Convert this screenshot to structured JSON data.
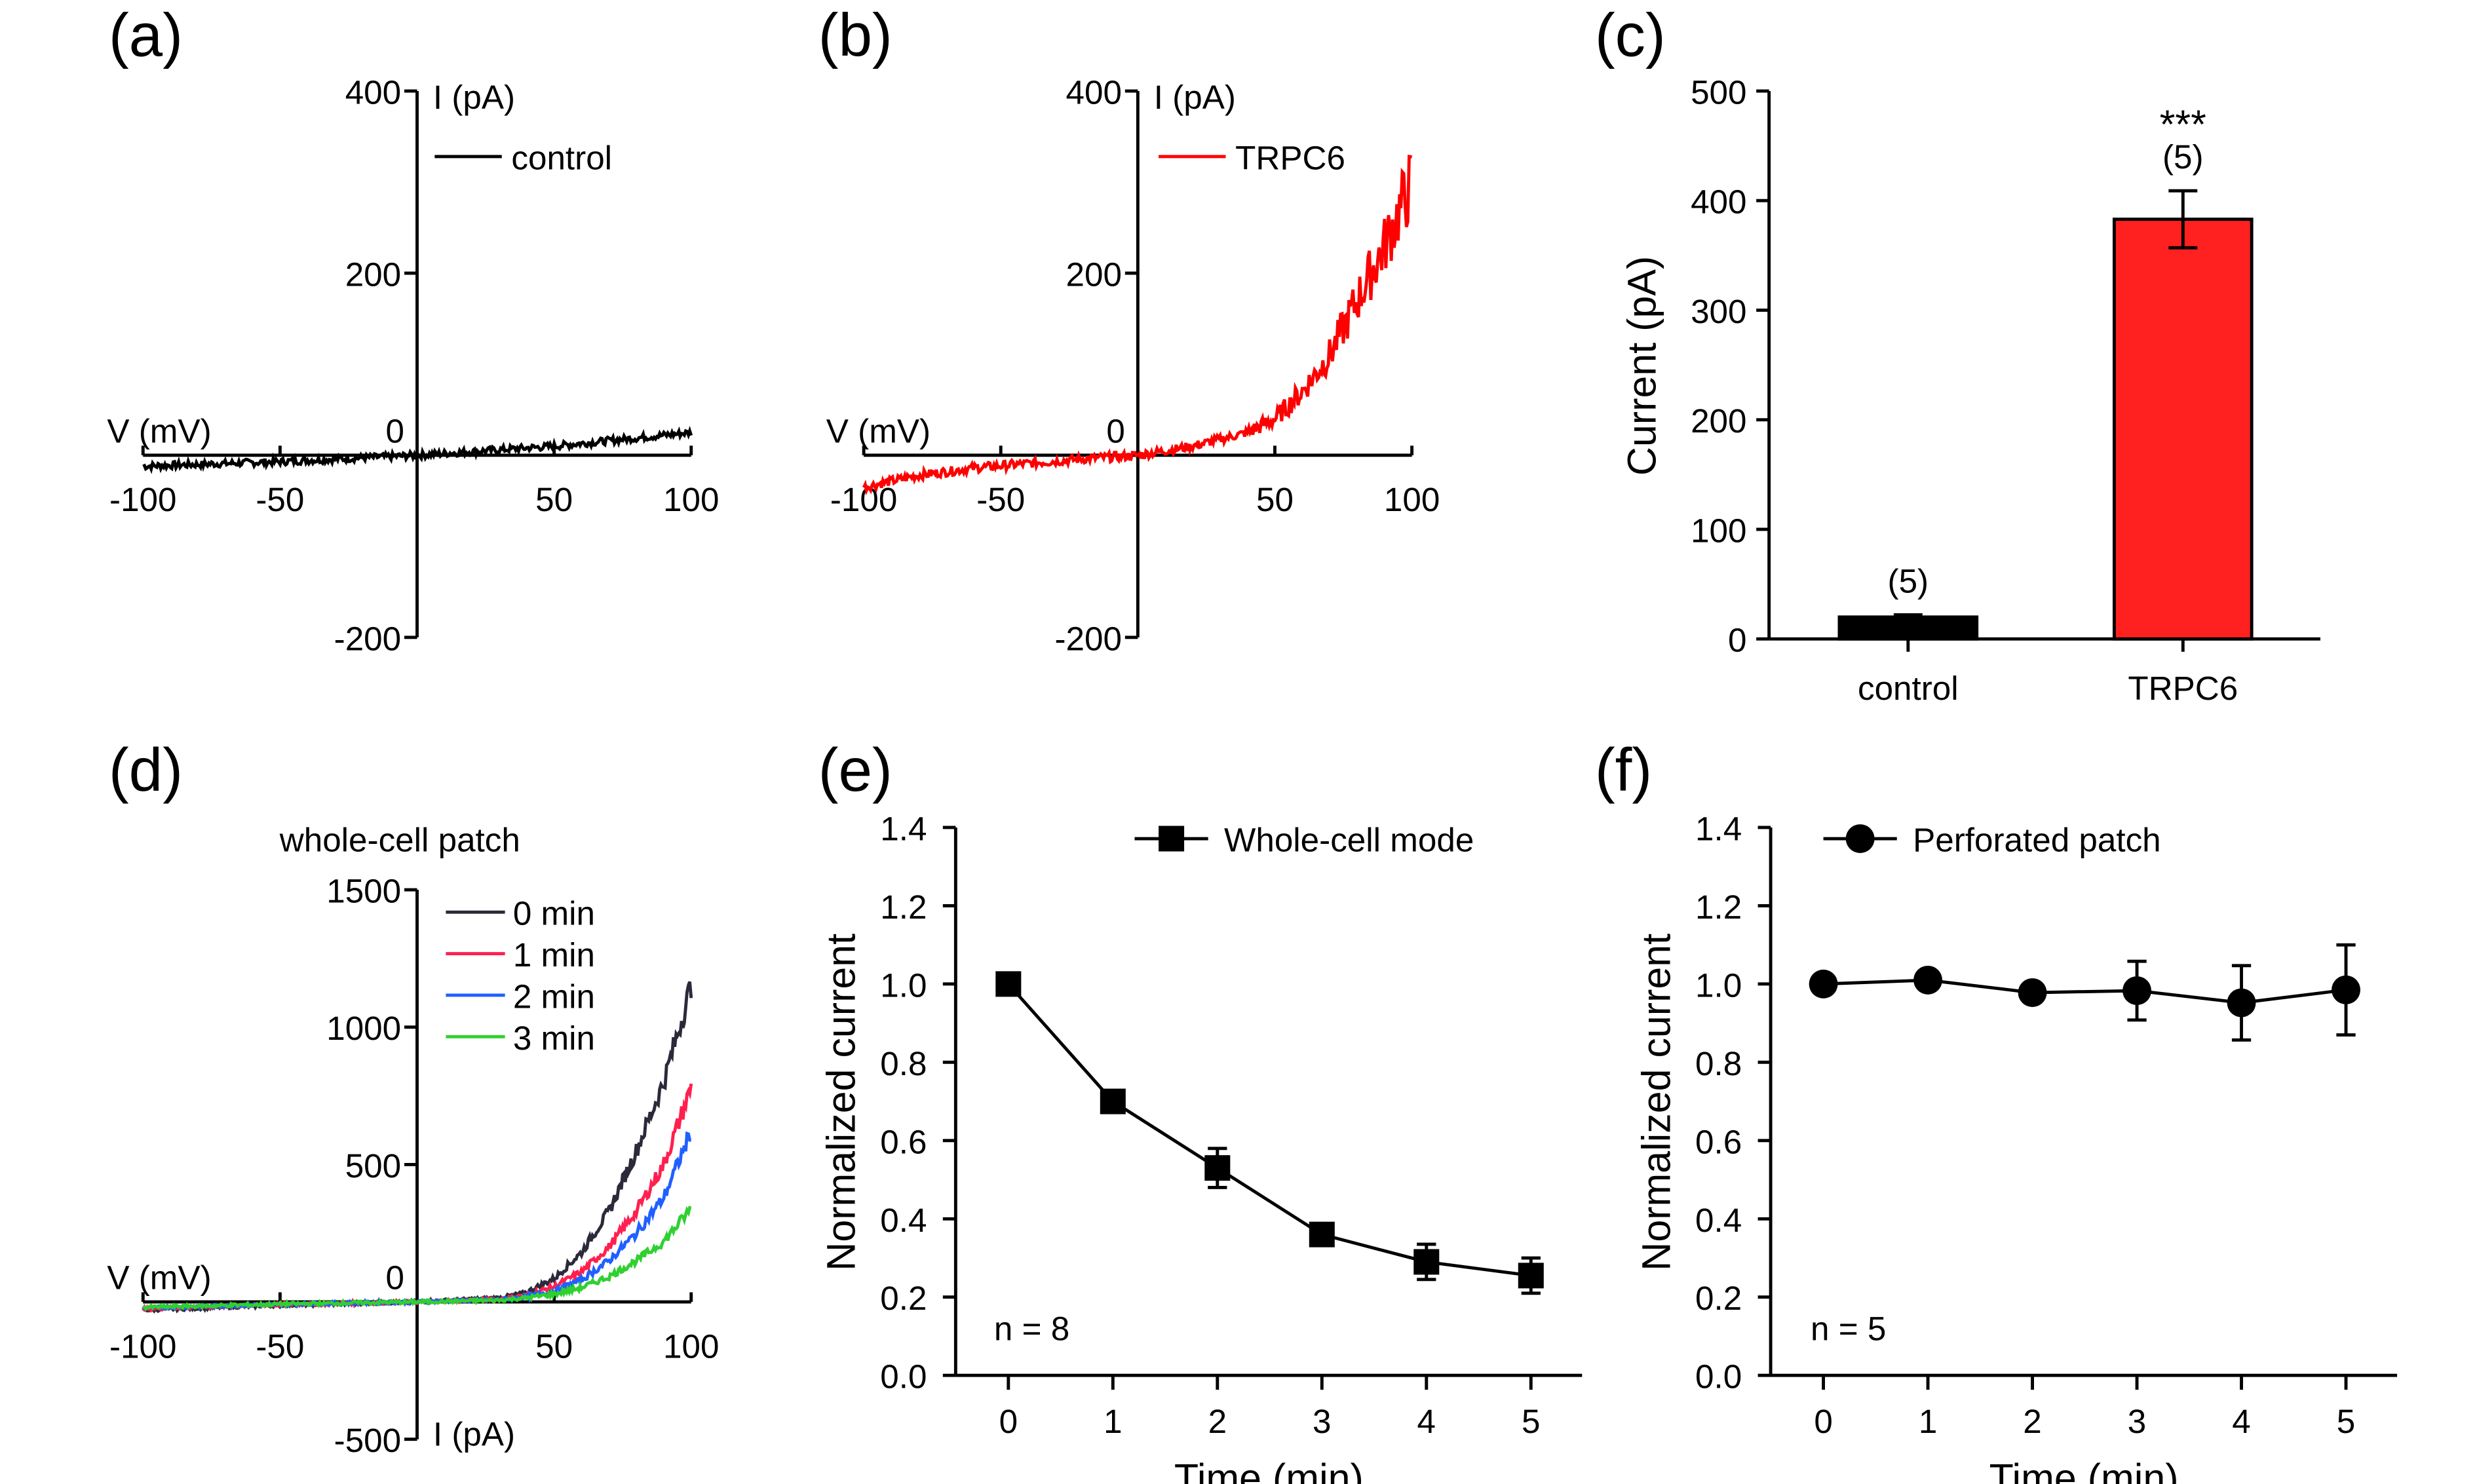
{
  "chart_data": [
    {
      "panel": "(a)",
      "type": "line",
      "xlabel": "V (mV)",
      "ylabel": "I (pA)",
      "xlim": [
        -100,
        100
      ],
      "ylim": [
        -200,
        400
      ],
      "xticks": [
        "-100",
        "-50",
        "50",
        "100"
      ],
      "yticks": [
        "400",
        "200",
        "-200"
      ],
      "origin_label": "0",
      "series": [
        {
          "name": "control",
          "color": "#000000",
          "x": [
            -100,
            -50,
            0,
            50,
            100
          ],
          "y": [
            -12,
            -7,
            0,
            10,
            25
          ]
        }
      ]
    },
    {
      "panel": "(b)",
      "type": "line",
      "xlabel": "V (mV)",
      "ylabel": "I (pA)",
      "xlim": [
        -100,
        100
      ],
      "ylim": [
        -200,
        400
      ],
      "xticks": [
        "-100",
        "-50",
        "50",
        "100"
      ],
      "yticks": [
        "400",
        "200",
        "-200"
      ],
      "origin_label": "0",
      "series": [
        {
          "name": "TRPC6",
          "color": "#ff0000",
          "x": [
            -100,
            -80,
            -60,
            -40,
            -20,
            0,
            20,
            40,
            50,
            60,
            70,
            80,
            90,
            100
          ],
          "y": [
            -35,
            -22,
            -14,
            -9,
            -4,
            0,
            10,
            25,
            40,
            70,
            110,
            170,
            230,
            300
          ]
        }
      ]
    },
    {
      "panel": "(c)",
      "type": "bar",
      "ylabel": "Current (pA)",
      "ylim": [
        0,
        500
      ],
      "yticks": [
        "0",
        "100",
        "200",
        "300",
        "400",
        "500"
      ],
      "categories": [
        "control",
        "TRPC6"
      ],
      "values": [
        20,
        383
      ],
      "errors": [
        2,
        26
      ],
      "colors": [
        "#000000",
        "#ff2020"
      ],
      "n_labels": [
        "(5)",
        "(5)"
      ],
      "significance": [
        "",
        "***"
      ]
    },
    {
      "panel": "(d)",
      "type": "line",
      "title": "whole-cell patch",
      "xlabel": "V (mV)",
      "ylabel": "I (pA)",
      "xlim": [
        -100,
        100
      ],
      "ylim": [
        -500,
        1500
      ],
      "xticks": [
        "-100",
        "-50",
        "50",
        "100"
      ],
      "yticks": [
        "1500",
        "1000",
        "500",
        "-500"
      ],
      "origin_label": "0",
      "series": [
        {
          "name": "0 min",
          "color": "#2a2a3a",
          "x": [
            -100,
            -50,
            0,
            30,
            40,
            50,
            60,
            70,
            80,
            90,
            100
          ],
          "y": [
            -30,
            -12,
            0,
            15,
            35,
            85,
            180,
            330,
            550,
            800,
            1150
          ]
        },
        {
          "name": "1 min",
          "color": "#ff2050",
          "x": [
            -100,
            -50,
            0,
            30,
            40,
            50,
            60,
            70,
            80,
            90,
            100
          ],
          "y": [
            -25,
            -10,
            0,
            10,
            25,
            55,
            110,
            200,
            330,
            500,
            780
          ]
        },
        {
          "name": "2 min",
          "color": "#2060ff",
          "x": [
            -100,
            -50,
            0,
            30,
            40,
            50,
            60,
            70,
            80,
            90,
            100
          ],
          "y": [
            -22,
            -9,
            0,
            8,
            20,
            40,
            80,
            150,
            250,
            380,
            620
          ]
        },
        {
          "name": "3 min",
          "color": "#30d030",
          "x": [
            -100,
            -50,
            0,
            30,
            40,
            50,
            60,
            70,
            80,
            90,
            100
          ],
          "y": [
            -20,
            -8,
            0,
            6,
            15,
            28,
            52,
            92,
            150,
            220,
            340
          ]
        }
      ]
    },
    {
      "panel": "(e)",
      "type": "line",
      "xlabel": "Time (min)",
      "ylabel": "Normalized current",
      "xlim": [
        -0.5,
        5.5
      ],
      "ylim": [
        0,
        1.4
      ],
      "xticks": [
        "0",
        "1",
        "2",
        "3",
        "4",
        "5"
      ],
      "yticks": [
        "0.0",
        "0.2",
        "0.4",
        "0.6",
        "0.8",
        "1.0",
        "1.2",
        "1.4"
      ],
      "annotation": "n = 8",
      "series": [
        {
          "name": "Whole-cell mode",
          "marker": "square",
          "x": [
            0,
            1,
            2,
            3,
            4,
            5
          ],
          "y": [
            1.0,
            0.7,
            0.53,
            0.36,
            0.29,
            0.255
          ],
          "err": [
            0,
            0.015,
            0.05,
            0.02,
            0.045,
            0.045
          ]
        }
      ]
    },
    {
      "panel": "(f)",
      "type": "line",
      "xlabel": "Time (min)",
      "ylabel": "Normalized current",
      "xlim": [
        -0.5,
        5.5
      ],
      "ylim": [
        0,
        1.4
      ],
      "xticks": [
        "0",
        "1",
        "2",
        "3",
        "4",
        "5"
      ],
      "yticks": [
        "0.0",
        "0.2",
        "0.4",
        "0.6",
        "0.8",
        "1.0",
        "1.2",
        "1.4"
      ],
      "annotation": "n = 5",
      "series": [
        {
          "name": "Perforated patch",
          "marker": "circle",
          "x": [
            0,
            1,
            2,
            3,
            4,
            5
          ],
          "y": [
            1.0,
            1.01,
            0.978,
            0.983,
            0.952,
            0.985
          ],
          "err": [
            0,
            0.01,
            0.02,
            0.075,
            0.095,
            0.115
          ]
        }
      ]
    }
  ]
}
